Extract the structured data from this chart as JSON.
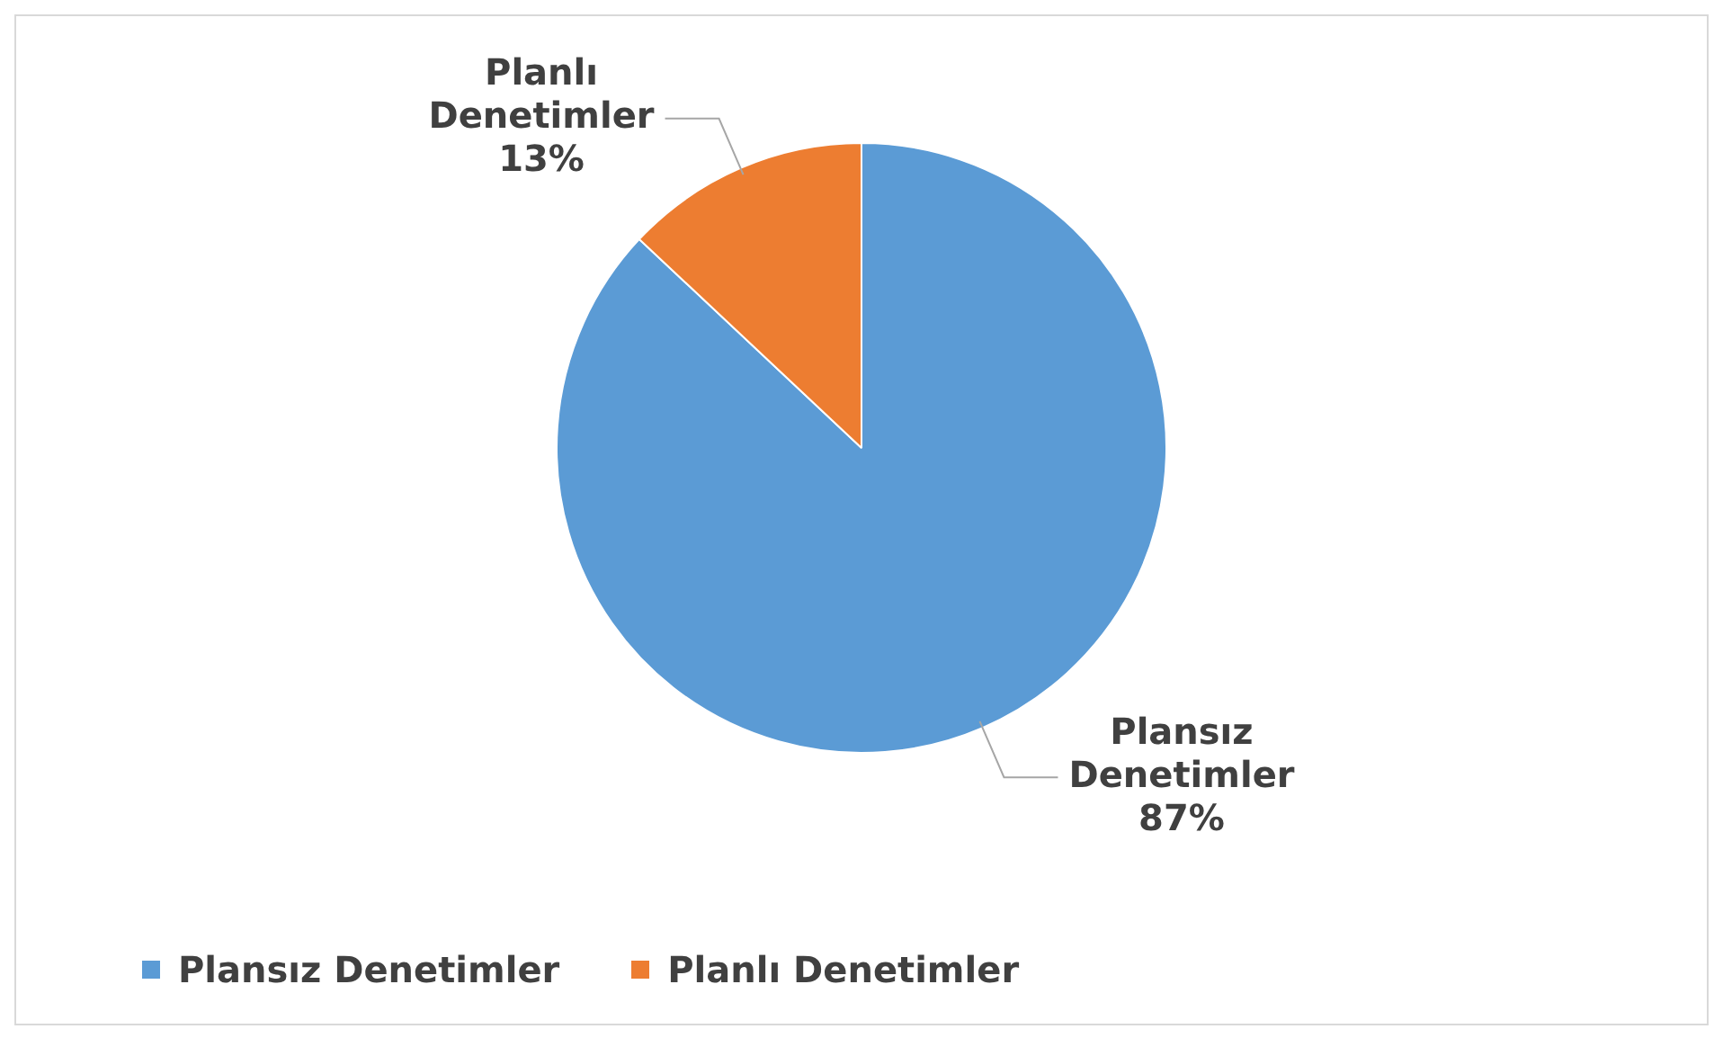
{
  "chart_data": {
    "type": "pie",
    "categories": [
      "Plansız Denetimler",
      "Planlı Denetimler"
    ],
    "values": [
      87,
      13
    ],
    "value_labels": [
      "87%",
      "13%"
    ],
    "colors": [
      "#5b9bd5",
      "#ed7d31"
    ],
    "legend": "bottom left"
  }
}
